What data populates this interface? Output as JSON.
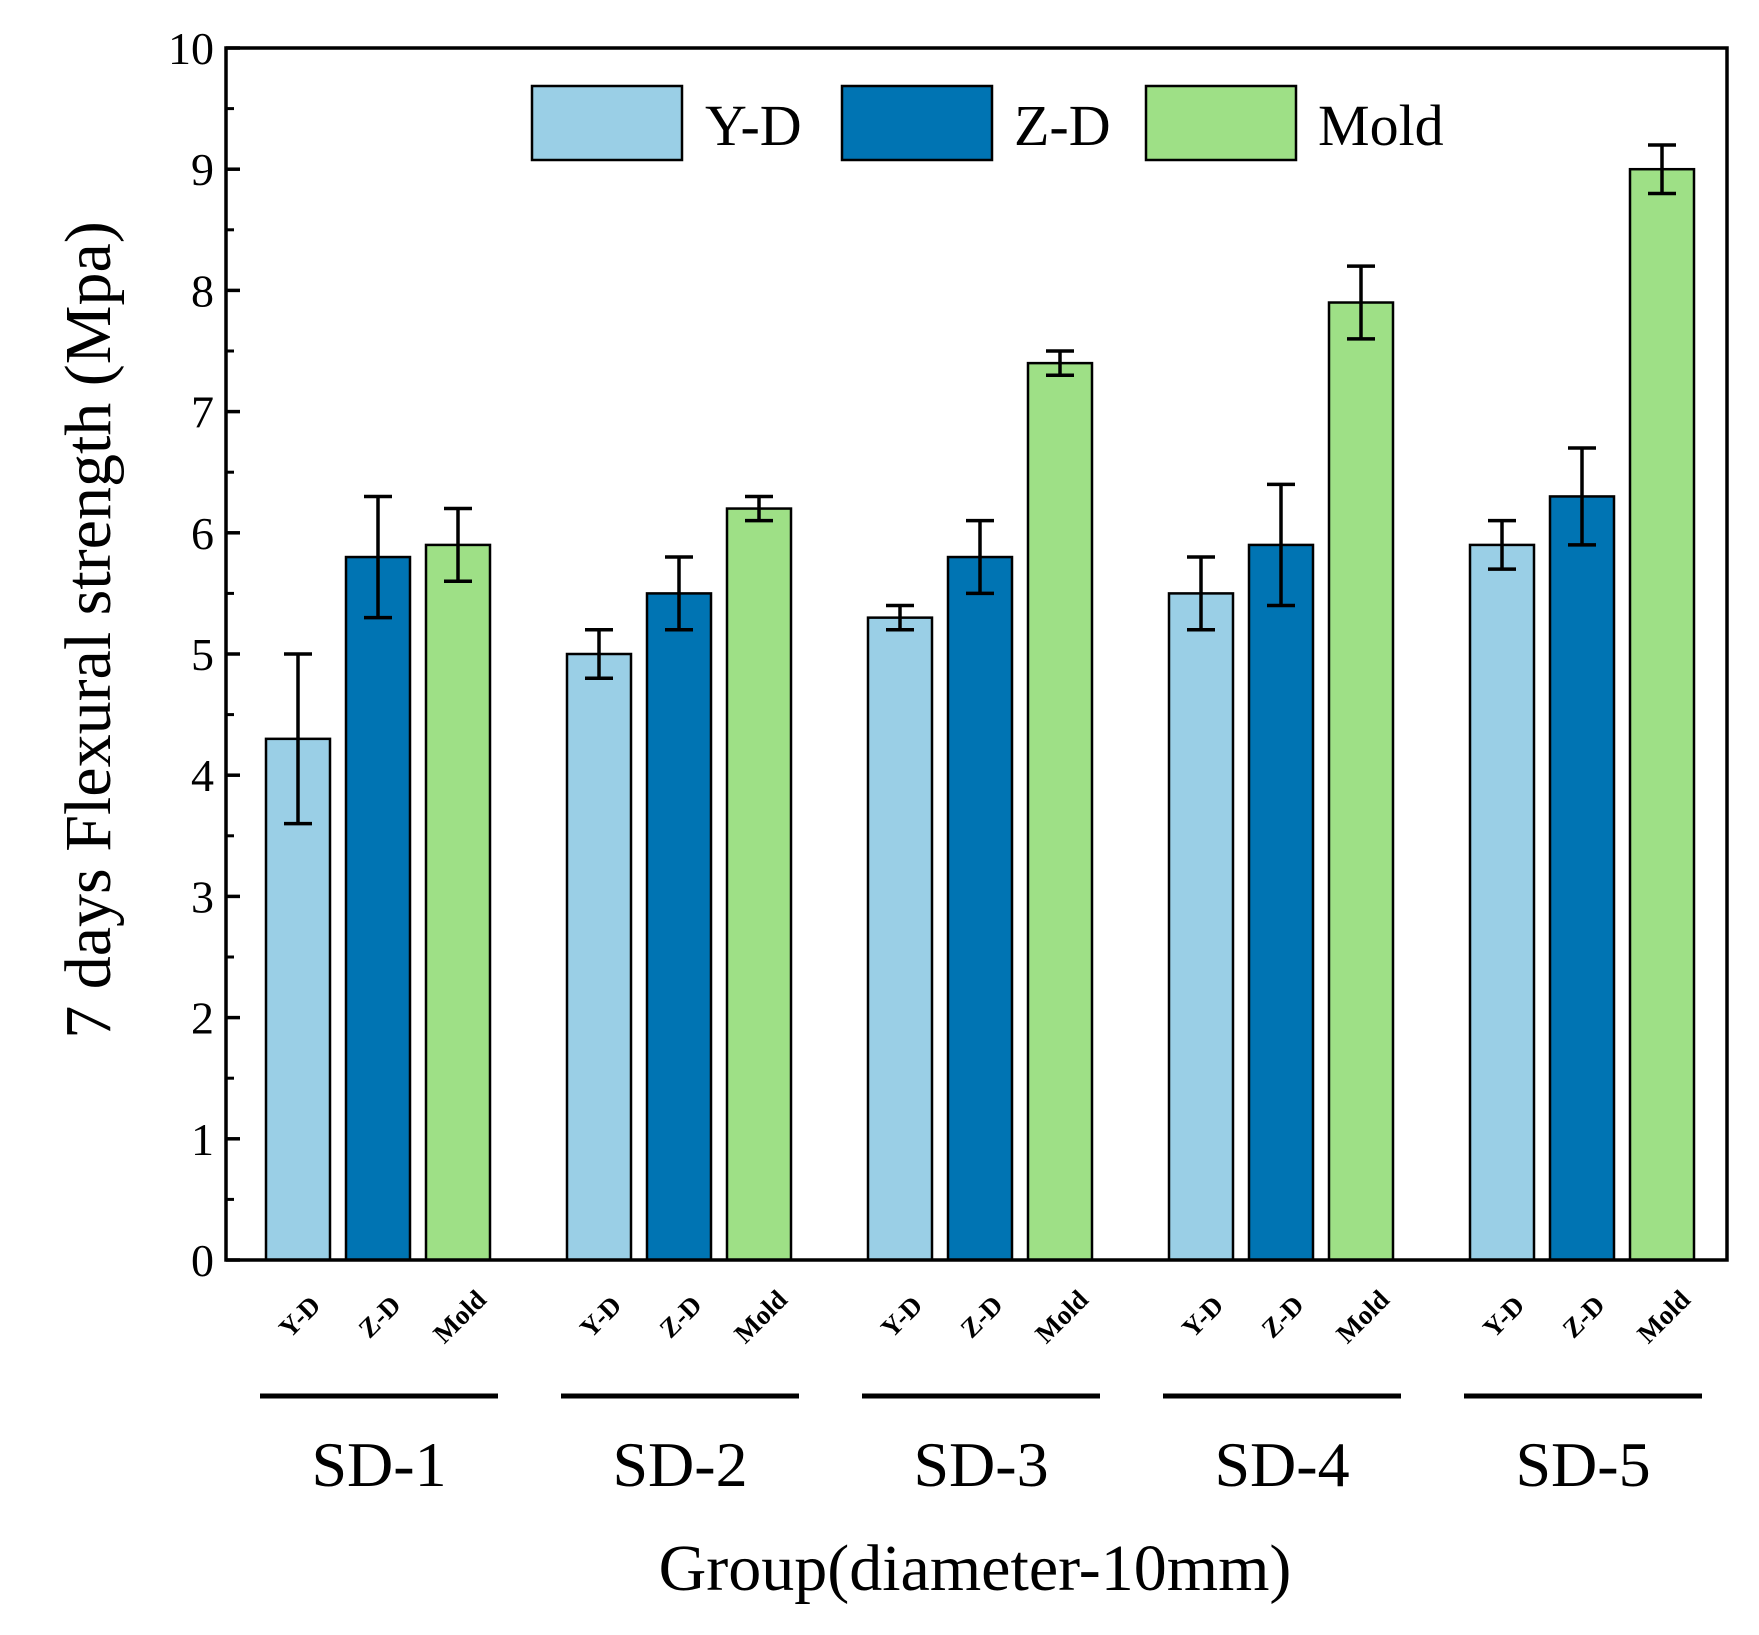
{
  "chart_data": {
    "type": "bar",
    "title": "",
    "xlabel": "Group(diameter-10mm)",
    "ylabel": "7 days Flexural strength (Mpa)",
    "ylim": [
      0,
      10
    ],
    "yticks": [
      0,
      1,
      2,
      3,
      4,
      5,
      6,
      7,
      8,
      9,
      10
    ],
    "categories": [
      "SD-1",
      "SD-2",
      "SD-3",
      "SD-4",
      "SD-5"
    ],
    "sub_labels": [
      "Y-D",
      "Z-D",
      "Mold"
    ],
    "legend_position": "top-center",
    "series": [
      {
        "name": "Y-D",
        "color": "#9ACFE6",
        "values": [
          4.3,
          5.0,
          5.3,
          5.5,
          5.9
        ],
        "errors": [
          0.7,
          0.2,
          0.1,
          0.3,
          0.2
        ]
      },
      {
        "name": "Z-D",
        "color": "#0074B3",
        "values": [
          5.8,
          5.5,
          5.8,
          5.9,
          6.3
        ],
        "errors": [
          0.5,
          0.3,
          0.3,
          0.5,
          0.4
        ]
      },
      {
        "name": "Mold",
        "color": "#9EE086",
        "values": [
          5.9,
          6.2,
          7.4,
          7.9,
          9.0
        ],
        "errors": [
          0.3,
          0.1,
          0.1,
          0.3,
          0.2
        ]
      }
    ]
  }
}
